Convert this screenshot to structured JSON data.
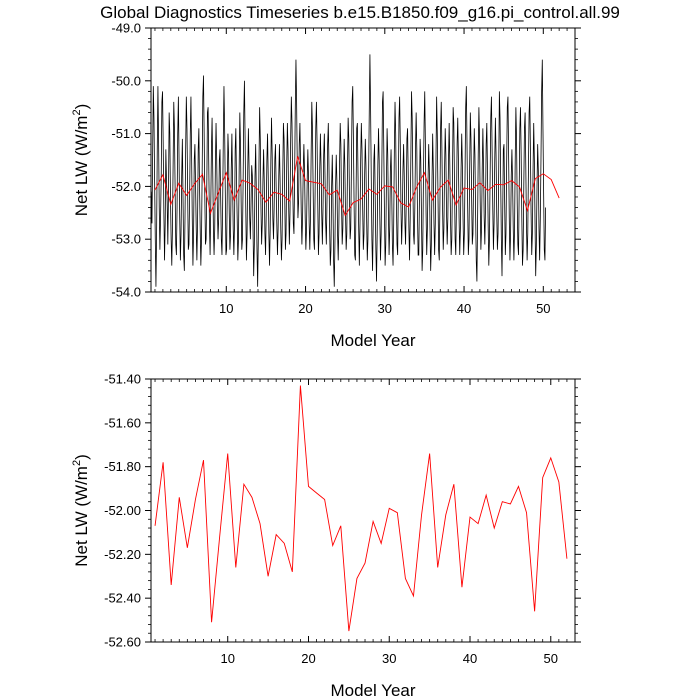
{
  "title": "Global Diagnostics Timeseries b.e15.B1850.f09_g16.pi_control.all.99",
  "colors": {
    "monthly": "#000000",
    "annual": "#ff0000",
    "frame": "#000000"
  },
  "chart_data": [
    {
      "type": "line",
      "xlabel": "Model Year",
      "ylabel_prefix": "Net LW (W/m",
      "ylabel_sup": "2",
      "ylabel_suffix": ")",
      "xlim": [
        0.5,
        54.0
      ],
      "ylim": [
        -54.0,
        -49.0
      ],
      "x_ticks": [
        10,
        20,
        30,
        40,
        50
      ],
      "y_ticks": [
        -54.0,
        -53.0,
        -52.0,
        -51.0,
        -50.0,
        -49.0
      ],
      "y_tick_decimals": 1,
      "series": [
        {
          "resolution": "monthly",
          "color": "#000000",
          "x_start": 0.54,
          "x_step": 0.0833333,
          "values": [
            -52.1,
            -52.7,
            -51.4,
            -50.1,
            -50.7,
            -51.9,
            -53.0,
            -53.9,
            -52.9,
            -51.3,
            -50.1,
            -51.1,
            -52.4,
            -53.2,
            -52.6,
            -51.8,
            -50.4,
            -50.2,
            -51.2,
            -52.5,
            -53.4,
            -52.7,
            -51.3,
            -51.9,
            -52.3,
            -53.1,
            -52.1,
            -50.6,
            -51.0,
            -52.2,
            -53.0,
            -53.5,
            -52.8,
            -51.6,
            -50.4,
            -50.9,
            -52.0,
            -53.1,
            -53.3,
            -52.4,
            -51.0,
            -50.3,
            -51.5,
            -52.6,
            -53.4,
            -52.9,
            -51.8,
            -51.1,
            -52.2,
            -53.3,
            -53.6,
            -52.6,
            -51.3,
            -50.3,
            -50.9,
            -52.1,
            -53.2,
            -53.1,
            -52.2,
            -51.0,
            -50.3,
            -51.4,
            -52.6,
            -53.5,
            -52.9,
            -51.5,
            -51.2,
            -52.0,
            -52.8,
            -53.4,
            -52.7,
            -51.3,
            -50.9,
            -52.0,
            -52.8,
            -53.5,
            -53.0,
            -51.7,
            -50.3,
            -49.9,
            -51.0,
            -52.2,
            -53.1,
            -53.0,
            -52.0,
            -50.6,
            -50.5,
            -51.6,
            -52.7,
            -53.3,
            -52.4,
            -51.3,
            -50.7,
            -51.7,
            -52.8,
            -53.3,
            -52.8,
            -51.6,
            -50.8,
            -51.5,
            -52.4,
            -53.0,
            -52.6,
            -51.5,
            -51.3,
            -52.2,
            -53.0,
            -53.3,
            -52.4,
            -51.1,
            -50.1,
            -50.9,
            -52.1,
            -53.3,
            -53.2,
            -52.1,
            -51.0,
            -51.4,
            -52.5,
            -53.2,
            -52.9,
            -51.7,
            -51.0,
            -51.9,
            -52.8,
            -53.3,
            -52.7,
            -51.3,
            -50.9,
            -51.9,
            -52.6,
            -53.4,
            -53.0,
            -51.7,
            -50.6,
            -51.2,
            -52.3,
            -53.2,
            -53.0,
            -51.9,
            -50.6,
            -50.0,
            -51.1,
            -52.4,
            -53.4,
            -52.9,
            -51.7,
            -50.9,
            -51.6,
            -52.6,
            -53.0,
            -52.3,
            -51.6,
            -51.8,
            -52.8,
            -53.7,
            -53.1,
            -51.8,
            -51.2,
            -52.1,
            -53.2,
            -53.9,
            -53.0,
            -51.6,
            -50.5,
            -51.1,
            -52.4,
            -53.1,
            -52.7,
            -51.9,
            -51.3,
            -51.9,
            -52.9,
            -53.3,
            -52.5,
            -51.5,
            -51.0,
            -51.8,
            -52.9,
            -53.5,
            -52.8,
            -51.5,
            -50.7,
            -51.4,
            -52.6,
            -53.0,
            -52.4,
            -51.5,
            -51.2,
            -52.0,
            -52.7,
            -53.3,
            -52.8,
            -51.8,
            -51.2,
            -51.9,
            -52.8,
            -53.4,
            -53.0,
            -51.8,
            -50.8,
            -51.1,
            -52.2,
            -53.2,
            -52.9,
            -51.6,
            -50.8,
            -51.3,
            -52.4,
            -53.1,
            -52.5,
            -51.1,
            -50.3,
            -50.8,
            -51.9,
            -52.7,
            -52.9,
            -51.8,
            -50.5,
            -49.6,
            -50.4,
            -51.6,
            -52.6,
            -52.3,
            -51.2,
            -50.8,
            -51.6,
            -52.5,
            -53.1,
            -52.6,
            -51.7,
            -51.2,
            -51.7,
            -52.6,
            -53.2,
            -52.8,
            -51.9,
            -51.3,
            -51.8,
            -52.7,
            -53.2,
            -52.6,
            -51.4,
            -50.4,
            -50.9,
            -52.0,
            -53.0,
            -53.2,
            -52.1,
            -50.9,
            -50.4,
            -51.2,
            -52.3,
            -53.3,
            -52.9,
            -51.7,
            -51.0,
            -51.6,
            -52.5,
            -53.1,
            -52.4,
            -51.4,
            -51.0,
            -51.8,
            -52.7,
            -53.1,
            -52.3,
            -51.2,
            -50.8,
            -51.6,
            -52.8,
            -53.5,
            -53.2,
            -52.0,
            -51.4,
            -52.2,
            -53.4,
            -53.9,
            -53.1,
            -52.0,
            -51.4,
            -51.9,
            -52.9,
            -53.4,
            -52.7,
            -51.6,
            -50.8,
            -51.2,
            -52.3,
            -53.1,
            -52.8,
            -51.9,
            -51.1,
            -51.6,
            -52.5,
            -53.2,
            -52.9,
            -51.7,
            -50.7,
            -51.1,
            -52.2,
            -53.0,
            -52.8,
            -51.6,
            -50.4,
            -50.1,
            -51.1,
            -52.3,
            -53.3,
            -53.4,
            -52.2,
            -50.9,
            -50.8,
            -51.8,
            -52.8,
            -53.5,
            -52.7,
            -51.5,
            -50.8,
            -51.3,
            -52.4,
            -53.2,
            -52.9,
            -51.8,
            -51.1,
            -51.6,
            -52.6,
            -53.4,
            -53.0,
            -51.8,
            -50.6,
            -49.5,
            -50.5,
            -51.8,
            -53.0,
            -53.6,
            -52.7,
            -51.5,
            -51.2,
            -52.2,
            -53.2,
            -53.8,
            -52.9,
            -51.6,
            -50.9,
            -51.5,
            -52.6,
            -53.4,
            -52.9,
            -51.7,
            -50.4,
            -50.2,
            -51.3,
            -52.5,
            -53.5,
            -53.1,
            -51.9,
            -50.9,
            -51.4,
            -52.5,
            -53.3,
            -52.8,
            -51.7,
            -51.3,
            -52.1,
            -53.1,
            -53.5,
            -52.7,
            -51.3,
            -50.4,
            -51.0,
            -52.2,
            -53.1,
            -53.3,
            -52.1,
            -50.7,
            -50.3,
            -51.2,
            -52.4,
            -53.1,
            -52.6,
            -51.7,
            -51.2,
            -51.8,
            -52.7,
            -53.1,
            -52.3,
            -51.1,
            -50.9,
            -51.8,
            -52.8,
            -53.4,
            -52.6,
            -51.4,
            -50.2,
            -50.7,
            -51.9,
            -52.9,
            -53.1,
            -52.4,
            -51.3,
            -50.6,
            -51.3,
            -52.5,
            -53.3,
            -53.3,
            -52.2,
            -51.1,
            -51.5,
            -52.5,
            -53.6,
            -53.2,
            -51.9,
            -50.8,
            -50.2,
            -51.2,
            -52.5,
            -53.3,
            -52.8,
            -51.9,
            -51.2,
            -51.7,
            -52.8,
            -53.6,
            -53.1,
            -51.9,
            -51.0,
            -51.7,
            -52.7,
            -53.3,
            -52.7,
            -51.5,
            -50.3,
            -51.0,
            -52.1,
            -53.2,
            -53.4,
            -52.3,
            -50.9,
            -50.4,
            -51.3,
            -52.4,
            -53.2,
            -52.8,
            -51.7,
            -50.9,
            -51.4,
            -52.5,
            -53.1,
            -52.6,
            -51.5,
            -50.8,
            -51.6,
            -52.6,
            -53.3,
            -53.0,
            -51.8,
            -50.5,
            -50.8,
            -51.9,
            -53.0,
            -53.3,
            -52.4,
            -51.2,
            -50.7,
            -51.5,
            -52.6,
            -53.3,
            -52.8,
            -51.7,
            -51.0,
            -51.6,
            -52.6,
            -53.3,
            -52.9,
            -51.8,
            -50.5,
            -50.1,
            -51.2,
            -52.4,
            -53.3,
            -53.0,
            -51.7,
            -50.6,
            -51.1,
            -52.2,
            -53.1,
            -52.9,
            -51.8,
            -50.9,
            -51.4,
            -52.5,
            -53.4,
            -53.8,
            -52.7,
            -51.4,
            -50.5,
            -51.1,
            -52.3,
            -53.2,
            -52.8,
            -51.7,
            -50.9,
            -51.6,
            -52.6,
            -53.1,
            -52.4,
            -51.2,
            -50.8,
            -51.7,
            -52.7,
            -53.5,
            -53.0,
            -51.8,
            -50.7,
            -50.3,
            -51.3,
            -52.4,
            -53.2,
            -52.7,
            -51.5,
            -50.7,
            -51.4,
            -52.5,
            -53.2,
            -52.9,
            -51.7,
            -50.2,
            -50.7,
            -51.9,
            -53.0,
            -53.7,
            -52.6,
            -51.3,
            -51.2,
            -52.3,
            -53.3,
            -52.9,
            -51.6,
            -50.5,
            -50.3,
            -51.4,
            -52.6,
            -53.4,
            -52.9,
            -51.8,
            -51.3,
            -51.9,
            -52.8,
            -53.4,
            -52.8,
            -51.5,
            -50.5,
            -51.1,
            -52.3,
            -53.1,
            -53.3,
            -52.1,
            -50.9,
            -50.5,
            -51.4,
            -52.6,
            -53.5,
            -53.2,
            -52.0,
            -50.9,
            -50.6,
            -51.6,
            -52.7,
            -53.4,
            -52.9,
            -51.7,
            -50.6,
            -50.3,
            -51.3,
            -52.5,
            -53.3,
            -52.9,
            -51.7,
            -50.8,
            -51.5,
            -52.7,
            -53.7,
            -53.1,
            -52.0,
            -51.2,
            -51.7,
            -52.8,
            -53.4,
            -52.6,
            -51.5,
            -50.2,
            -49.6,
            -50.9,
            -52.1,
            -53.2,
            -53.4,
            -52.4
          ]
        },
        {
          "resolution": "annual",
          "color": "#ff0000",
          "x_start": 1.0,
          "x_step": 1.0,
          "values": [
            -52.07,
            -51.78,
            -52.34,
            -51.94,
            -52.17,
            -51.95,
            -51.77,
            -52.51,
            -52.12,
            -51.74,
            -52.26,
            -51.88,
            -51.94,
            -52.06,
            -52.3,
            -52.11,
            -52.15,
            -52.28,
            -51.43,
            -51.89,
            -51.92,
            -51.95,
            -52.16,
            -52.07,
            -52.55,
            -52.31,
            -52.24,
            -52.05,
            -52.15,
            -51.99,
            -52.01,
            -52.31,
            -52.39,
            -52.02,
            -51.74,
            -52.26,
            -52.02,
            -51.88,
            -52.35,
            -52.03,
            -52.06,
            -51.93,
            -52.08,
            -51.96,
            -51.97,
            -51.89,
            -52.01,
            -52.46,
            -51.85,
            -51.76,
            -51.87,
            -52.22
          ]
        }
      ]
    },
    {
      "type": "line",
      "xlabel": "Model Year",
      "ylabel_prefix": "Net LW (W/m",
      "ylabel_sup": "2",
      "ylabel_suffix": ")",
      "xlim": [
        0.5,
        53.0
      ],
      "ylim": [
        -52.6,
        -51.4
      ],
      "x_ticks": [
        10,
        20,
        30,
        40,
        50
      ],
      "y_ticks": [
        -52.6,
        -52.4,
        -52.2,
        -52.0,
        -51.8,
        -51.6,
        -51.4
      ],
      "y_tick_decimals": 2,
      "series": [
        {
          "resolution": "annual",
          "color": "#ff0000",
          "x_start": 1.0,
          "x_step": 1.0,
          "values": [
            -52.07,
            -51.78,
            -52.34,
            -51.94,
            -52.17,
            -51.95,
            -51.77,
            -52.51,
            -52.12,
            -51.74,
            -52.26,
            -51.88,
            -51.94,
            -52.06,
            -52.3,
            -52.11,
            -52.15,
            -52.28,
            -51.43,
            -51.89,
            -51.92,
            -51.95,
            -52.16,
            -52.07,
            -52.55,
            -52.31,
            -52.24,
            -52.05,
            -52.15,
            -51.99,
            -52.01,
            -52.31,
            -52.39,
            -52.02,
            -51.74,
            -52.26,
            -52.02,
            -51.88,
            -52.35,
            -52.03,
            -52.06,
            -51.93,
            -52.08,
            -51.96,
            -51.97,
            -51.89,
            -52.01,
            -52.46,
            -51.85,
            -51.76,
            -51.87,
            -52.22
          ]
        }
      ]
    }
  ]
}
